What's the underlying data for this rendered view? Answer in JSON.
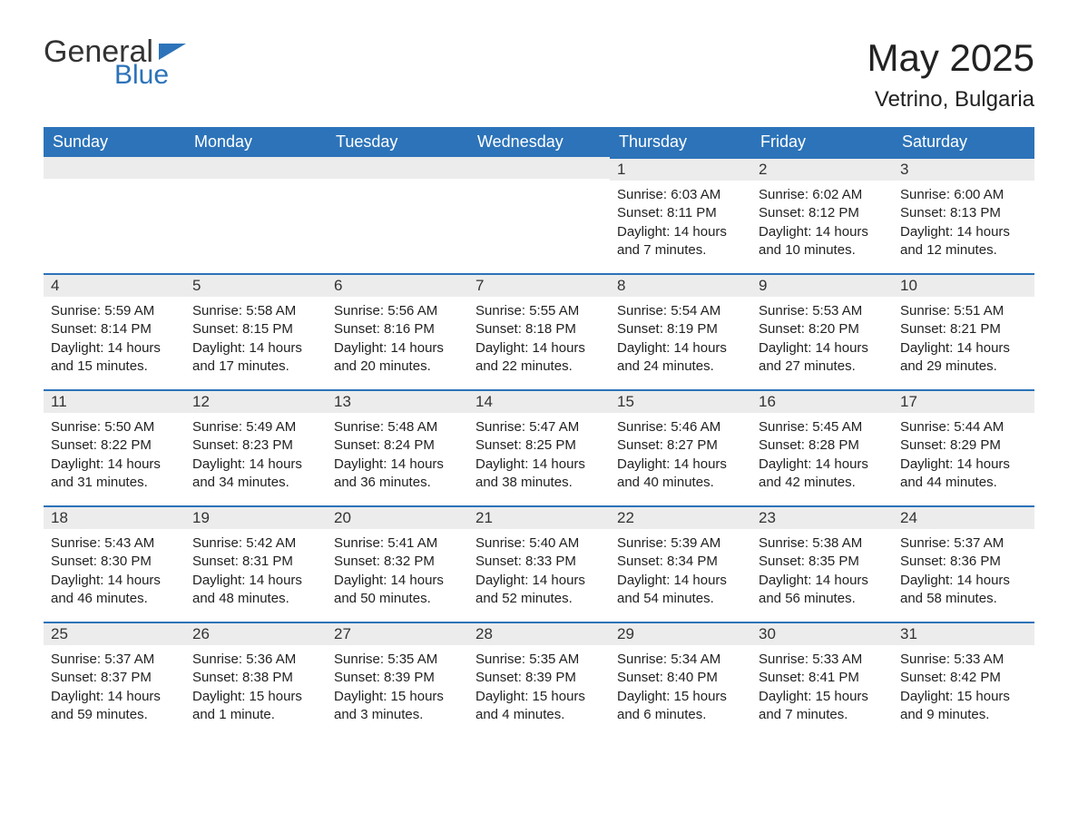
{
  "logo": {
    "text1": "General",
    "text2": "Blue"
  },
  "title": "May 2025",
  "location": "Vetrino, Bulgaria",
  "colors": {
    "header_bg": "#2c73b9",
    "header_text": "#ffffff",
    "daynum_bg": "#ececec",
    "daynum_border": "#2c73b9",
    "body_text": "#222222",
    "logo_gray": "#333333",
    "logo_blue": "#2c73b9",
    "page_bg": "#ffffff"
  },
  "fonts": {
    "month_title_pt": 42,
    "location_pt": 24,
    "header_pt": 18,
    "daynum_pt": 17,
    "body_pt": 15
  },
  "weekdays": [
    "Sunday",
    "Monday",
    "Tuesday",
    "Wednesday",
    "Thursday",
    "Friday",
    "Saturday"
  ],
  "weeks": [
    [
      null,
      null,
      null,
      null,
      {
        "n": "1",
        "sunrise": "6:03 AM",
        "sunset": "8:11 PM",
        "daylight": "14 hours and 7 minutes."
      },
      {
        "n": "2",
        "sunrise": "6:02 AM",
        "sunset": "8:12 PM",
        "daylight": "14 hours and 10 minutes."
      },
      {
        "n": "3",
        "sunrise": "6:00 AM",
        "sunset": "8:13 PM",
        "daylight": "14 hours and 12 minutes."
      }
    ],
    [
      {
        "n": "4",
        "sunrise": "5:59 AM",
        "sunset": "8:14 PM",
        "daylight": "14 hours and 15 minutes."
      },
      {
        "n": "5",
        "sunrise": "5:58 AM",
        "sunset": "8:15 PM",
        "daylight": "14 hours and 17 minutes."
      },
      {
        "n": "6",
        "sunrise": "5:56 AM",
        "sunset": "8:16 PM",
        "daylight": "14 hours and 20 minutes."
      },
      {
        "n": "7",
        "sunrise": "5:55 AM",
        "sunset": "8:18 PM",
        "daylight": "14 hours and 22 minutes."
      },
      {
        "n": "8",
        "sunrise": "5:54 AM",
        "sunset": "8:19 PM",
        "daylight": "14 hours and 24 minutes."
      },
      {
        "n": "9",
        "sunrise": "5:53 AM",
        "sunset": "8:20 PM",
        "daylight": "14 hours and 27 minutes."
      },
      {
        "n": "10",
        "sunrise": "5:51 AM",
        "sunset": "8:21 PM",
        "daylight": "14 hours and 29 minutes."
      }
    ],
    [
      {
        "n": "11",
        "sunrise": "5:50 AM",
        "sunset": "8:22 PM",
        "daylight": "14 hours and 31 minutes."
      },
      {
        "n": "12",
        "sunrise": "5:49 AM",
        "sunset": "8:23 PM",
        "daylight": "14 hours and 34 minutes."
      },
      {
        "n": "13",
        "sunrise": "5:48 AM",
        "sunset": "8:24 PM",
        "daylight": "14 hours and 36 minutes."
      },
      {
        "n": "14",
        "sunrise": "5:47 AM",
        "sunset": "8:25 PM",
        "daylight": "14 hours and 38 minutes."
      },
      {
        "n": "15",
        "sunrise": "5:46 AM",
        "sunset": "8:27 PM",
        "daylight": "14 hours and 40 minutes."
      },
      {
        "n": "16",
        "sunrise": "5:45 AM",
        "sunset": "8:28 PM",
        "daylight": "14 hours and 42 minutes."
      },
      {
        "n": "17",
        "sunrise": "5:44 AM",
        "sunset": "8:29 PM",
        "daylight": "14 hours and 44 minutes."
      }
    ],
    [
      {
        "n": "18",
        "sunrise": "5:43 AM",
        "sunset": "8:30 PM",
        "daylight": "14 hours and 46 minutes."
      },
      {
        "n": "19",
        "sunrise": "5:42 AM",
        "sunset": "8:31 PM",
        "daylight": "14 hours and 48 minutes."
      },
      {
        "n": "20",
        "sunrise": "5:41 AM",
        "sunset": "8:32 PM",
        "daylight": "14 hours and 50 minutes."
      },
      {
        "n": "21",
        "sunrise": "5:40 AM",
        "sunset": "8:33 PM",
        "daylight": "14 hours and 52 minutes."
      },
      {
        "n": "22",
        "sunrise": "5:39 AM",
        "sunset": "8:34 PM",
        "daylight": "14 hours and 54 minutes."
      },
      {
        "n": "23",
        "sunrise": "5:38 AM",
        "sunset": "8:35 PM",
        "daylight": "14 hours and 56 minutes."
      },
      {
        "n": "24",
        "sunrise": "5:37 AM",
        "sunset": "8:36 PM",
        "daylight": "14 hours and 58 minutes."
      }
    ],
    [
      {
        "n": "25",
        "sunrise": "5:37 AM",
        "sunset": "8:37 PM",
        "daylight": "14 hours and 59 minutes."
      },
      {
        "n": "26",
        "sunrise": "5:36 AM",
        "sunset": "8:38 PM",
        "daylight": "15 hours and 1 minute."
      },
      {
        "n": "27",
        "sunrise": "5:35 AM",
        "sunset": "8:39 PM",
        "daylight": "15 hours and 3 minutes."
      },
      {
        "n": "28",
        "sunrise": "5:35 AM",
        "sunset": "8:39 PM",
        "daylight": "15 hours and 4 minutes."
      },
      {
        "n": "29",
        "sunrise": "5:34 AM",
        "sunset": "8:40 PM",
        "daylight": "15 hours and 6 minutes."
      },
      {
        "n": "30",
        "sunrise": "5:33 AM",
        "sunset": "8:41 PM",
        "daylight": "15 hours and 7 minutes."
      },
      {
        "n": "31",
        "sunrise": "5:33 AM",
        "sunset": "8:42 PM",
        "daylight": "15 hours and 9 minutes."
      }
    ]
  ],
  "labels": {
    "sunrise": "Sunrise:",
    "sunset": "Sunset:",
    "daylight": "Daylight:"
  }
}
